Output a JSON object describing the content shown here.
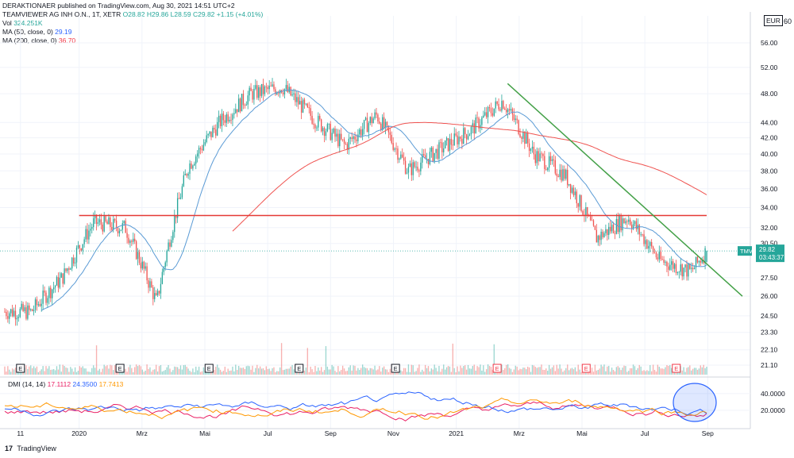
{
  "header": {
    "publisher_line": "DERAKTIONAER published on TradingView.com, Aug 30, 2021 14:51 UTC+2",
    "symbol": "TEAMVIEWER AG INH O.N., 1T, XETR",
    "ohlc": "O28.82 H29.86 L28.59 C29.82 +1.15 (+4.01%)",
    "vol_label": "Vol",
    "vol_value": "324.251K",
    "ma50_label": "MA (50, close, 0)",
    "ma50_value": "29.19",
    "ma200_label": "MA (200, close, 0)",
    "ma200_value": "36.70"
  },
  "currency": "EUR",
  "top_right_label": "60",
  "price_tag": {
    "symbol": "TMV",
    "price": "29.82",
    "time": "03:43:37"
  },
  "dmi": {
    "label": "DMI (14, 14)",
    "values": [
      "17.1112",
      "24.3500",
      "17.7413"
    ],
    "colors": [
      "#e91e63",
      "#2962ff",
      "#ff9800"
    ]
  },
  "footer": {
    "logo": "17",
    "brand": "TradingView"
  },
  "colors": {
    "up": "#26a69a",
    "down": "#ef5350",
    "ma50": "#5b9bd5",
    "ma200": "#ef5350",
    "resistance": "#e53935",
    "trendline": "#43a047",
    "grid": "#f0f3fa",
    "highlight": "#2962ff"
  },
  "chart_data": {
    "type": "candlestick",
    "price_axis": {
      "scale": "log",
      "ticks": [
        "56.00",
        "52.00",
        "48.00",
        "44.00",
        "42.00",
        "40.00",
        "38.00",
        "36.00",
        "34.00",
        "32.00",
        "30.50",
        "27.50",
        "26.00",
        "24.50",
        "23.30",
        "22.10",
        "21.10"
      ]
    },
    "dmi_axis": {
      "ticks": [
        "40.0000",
        "20.0000"
      ]
    },
    "x_axis": {
      "ticks": [
        "11",
        "2020",
        "Mrz",
        "Mai",
        "Jul",
        "Sep",
        "Nov",
        "2021",
        "Mrz",
        "Mai",
        "Jul",
        "Sep"
      ]
    },
    "earnings_markers": [
      "E",
      "E",
      "E",
      "E",
      "E",
      "E",
      "E",
      "E"
    ],
    "resistance_level": 33.2,
    "trendline": {
      "start_date": "2021-02",
      "start_price": 49.5,
      "end_date": "2021-09",
      "end_price": 26.0
    },
    "price_series_approx": [
      {
        "date": "2019-11",
        "close": 24.8
      },
      {
        "date": "2019-12",
        "close": 27.5
      },
      {
        "date": "2020-01",
        "close": 32.5
      },
      {
        "date": "2020-02",
        "close": 32.0
      },
      {
        "date": "2020-03",
        "close": 25.5
      },
      {
        "date": "2020-04",
        "close": 38.5
      },
      {
        "date": "2020-05",
        "close": 44.0
      },
      {
        "date": "2020-06",
        "close": 48.0
      },
      {
        "date": "2020-07",
        "close": 49.0
      },
      {
        "date": "2020-08",
        "close": 44.5
      },
      {
        "date": "2020-09",
        "close": 41.0
      },
      {
        "date": "2020-10",
        "close": 45.0
      },
      {
        "date": "2020-11",
        "close": 38.0
      },
      {
        "date": "2020-12",
        "close": 40.5
      },
      {
        "date": "2021-01",
        "close": 43.0
      },
      {
        "date": "2021-02",
        "close": 47.0
      },
      {
        "date": "2021-03",
        "close": 40.0
      },
      {
        "date": "2021-04",
        "close": 37.5
      },
      {
        "date": "2021-05",
        "close": 31.0
      },
      {
        "date": "2021-06",
        "close": 33.0
      },
      {
        "date": "2021-07",
        "close": 29.0
      },
      {
        "date": "2021-08",
        "close": 28.0
      },
      {
        "date": "2021-08-30",
        "close": 29.82
      }
    ]
  }
}
